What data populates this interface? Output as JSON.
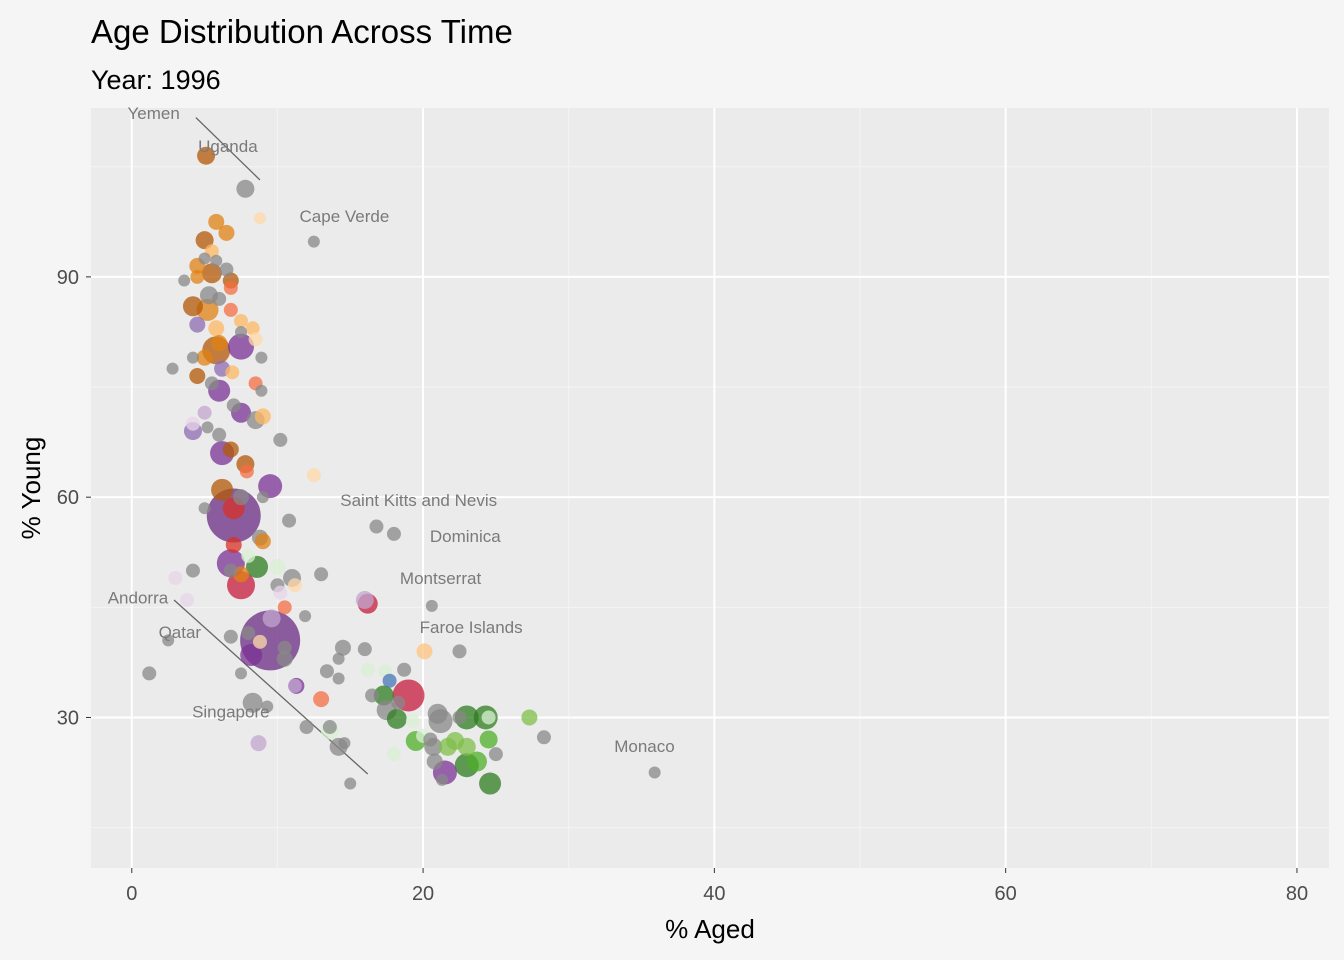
{
  "chart_data": {
    "type": "scatter",
    "title": "Age Distribution Across Time",
    "subtitle": "Year: 1996",
    "xlabel": "% Aged",
    "ylabel": "% Young",
    "xlim": [
      -2.8,
      82.2
    ],
    "ylim": [
      9.5,
      113
    ],
    "x_ticks": [
      0,
      20,
      40,
      60,
      80
    ],
    "y_ticks": [
      30,
      60,
      90
    ],
    "grid": true,
    "legend": "none",
    "colors": {
      "panel": "#ebebeb",
      "background": "#f5f5f5",
      "grid_major": "#ffffff",
      "grid_minor": "#f4f4f4",
      "label_text": "#7a7a7a"
    },
    "points": [
      {
        "x": 5.1,
        "y": 106.5,
        "r": 9,
        "c": "#b35806"
      },
      {
        "x": 7.8,
        "y": 102,
        "r": 9,
        "c": "#888888"
      },
      {
        "x": 8.8,
        "y": 98,
        "r": 6,
        "c": "#fdd9a8"
      },
      {
        "x": 12.5,
        "y": 94.8,
        "r": 6,
        "c": "#888888"
      },
      {
        "x": 5.8,
        "y": 97.5,
        "r": 8,
        "c": "#e08214"
      },
      {
        "x": 6.5,
        "y": 96,
        "r": 8,
        "c": "#e08214"
      },
      {
        "x": 5.0,
        "y": 95,
        "r": 9,
        "c": "#b35806"
      },
      {
        "x": 5.5,
        "y": 93.5,
        "r": 7,
        "c": "#fdb863"
      },
      {
        "x": 5.0,
        "y": 92.5,
        "r": 6,
        "c": "#888888"
      },
      {
        "x": 5.8,
        "y": 92.2,
        "r": 6,
        "c": "#888888"
      },
      {
        "x": 4.5,
        "y": 91.5,
        "r": 8,
        "c": "#e08214"
      },
      {
        "x": 6.5,
        "y": 91,
        "r": 7,
        "c": "#888888"
      },
      {
        "x": 5.5,
        "y": 90.5,
        "r": 10,
        "c": "#b35806"
      },
      {
        "x": 4.5,
        "y": 90,
        "r": 7,
        "c": "#e08214"
      },
      {
        "x": 6.8,
        "y": 89.5,
        "r": 8,
        "c": "#b35806"
      },
      {
        "x": 3.6,
        "y": 89.5,
        "r": 6,
        "c": "#888888"
      },
      {
        "x": 6.8,
        "y": 88.5,
        "r": 7,
        "c": "#f46d43"
      },
      {
        "x": 5.3,
        "y": 87.5,
        "r": 9,
        "c": "#888888"
      },
      {
        "x": 6.0,
        "y": 87,
        "r": 7,
        "c": "#888888"
      },
      {
        "x": 4.2,
        "y": 86,
        "r": 10,
        "c": "#b35806"
      },
      {
        "x": 5.2,
        "y": 85.5,
        "r": 11,
        "c": "#e08214"
      },
      {
        "x": 6.8,
        "y": 85.5,
        "r": 7,
        "c": "#f46d43"
      },
      {
        "x": 7.5,
        "y": 84,
        "r": 7,
        "c": "#fdb863"
      },
      {
        "x": 4.5,
        "y": 83.5,
        "r": 8,
        "c": "#8c6bb1"
      },
      {
        "x": 5.8,
        "y": 83,
        "r": 8,
        "c": "#fdb863"
      },
      {
        "x": 8.3,
        "y": 83,
        "r": 7,
        "c": "#fdb863"
      },
      {
        "x": 7.5,
        "y": 82.5,
        "r": 6,
        "c": "#888888"
      },
      {
        "x": 8.5,
        "y": 81.5,
        "r": 7,
        "c": "#fdd9a8"
      },
      {
        "x": 6.0,
        "y": 81,
        "r": 8,
        "c": "#e08214"
      },
      {
        "x": 7.5,
        "y": 80.5,
        "r": 13,
        "c": "#7b3294"
      },
      {
        "x": 5.8,
        "y": 80,
        "r": 14,
        "c": "#b35806"
      },
      {
        "x": 4.2,
        "y": 79,
        "r": 6,
        "c": "#888888"
      },
      {
        "x": 5.0,
        "y": 79,
        "r": 8,
        "c": "#e08214"
      },
      {
        "x": 8.9,
        "y": 79,
        "r": 6,
        "c": "#888888"
      },
      {
        "x": 6.2,
        "y": 77.5,
        "r": 8,
        "c": "#8c6bb1"
      },
      {
        "x": 2.8,
        "y": 77.5,
        "r": 6,
        "c": "#888888"
      },
      {
        "x": 6.9,
        "y": 77,
        "r": 7,
        "c": "#fdb863"
      },
      {
        "x": 4.5,
        "y": 76.5,
        "r": 8,
        "c": "#b35806"
      },
      {
        "x": 8.5,
        "y": 75.5,
        "r": 7,
        "c": "#f46d43"
      },
      {
        "x": 5.5,
        "y": 75.5,
        "r": 7,
        "c": "#888888"
      },
      {
        "x": 6.0,
        "y": 74.5,
        "r": 11,
        "c": "#7b3294"
      },
      {
        "x": 8.9,
        "y": 74.5,
        "r": 6,
        "c": "#888888"
      },
      {
        "x": 7.0,
        "y": 72.5,
        "r": 7,
        "c": "#888888"
      },
      {
        "x": 5.0,
        "y": 71.5,
        "r": 7,
        "c": "#c2a5cf"
      },
      {
        "x": 7.5,
        "y": 71.5,
        "r": 10,
        "c": "#7b3294"
      },
      {
        "x": 9.0,
        "y": 71,
        "r": 8,
        "c": "#fdb863"
      },
      {
        "x": 8.5,
        "y": 70.5,
        "r": 9,
        "c": "#888888"
      },
      {
        "x": 4.2,
        "y": 70,
        "r": 7,
        "c": "#e7d4e8"
      },
      {
        "x": 5.2,
        "y": 69.5,
        "r": 6,
        "c": "#888888"
      },
      {
        "x": 4.2,
        "y": 69,
        "r": 9,
        "c": "#8c6bb1"
      },
      {
        "x": 6.0,
        "y": 68.5,
        "r": 7,
        "c": "#888888"
      },
      {
        "x": 10.2,
        "y": 67.8,
        "r": 7,
        "c": "#888888"
      },
      {
        "x": 6.8,
        "y": 66.5,
        "r": 8,
        "c": "#b35806"
      },
      {
        "x": 6.2,
        "y": 66,
        "r": 12,
        "c": "#7b3294"
      },
      {
        "x": 7.8,
        "y": 64.5,
        "r": 9,
        "c": "#b35806"
      },
      {
        "x": 7.9,
        "y": 63.5,
        "r": 7,
        "c": "#f46d43"
      },
      {
        "x": 12.5,
        "y": 63,
        "r": 7,
        "c": "#fdd9a8"
      },
      {
        "x": 6.2,
        "y": 61,
        "r": 11,
        "c": "#b35806"
      },
      {
        "x": 9.5,
        "y": 61.5,
        "r": 12,
        "c": "#7b3294"
      },
      {
        "x": 9.0,
        "y": 60,
        "r": 6,
        "c": "#888888"
      },
      {
        "x": 7.5,
        "y": 60,
        "r": 8,
        "c": "#888888"
      },
      {
        "x": 5.0,
        "y": 58.5,
        "r": 6,
        "c": "#888888"
      },
      {
        "x": 7.0,
        "y": 57.5,
        "r": 27,
        "c": "#6a2c84"
      },
      {
        "x": 7.0,
        "y": 58.5,
        "r": 11,
        "c": "#d73027"
      },
      {
        "x": 10.8,
        "y": 56.8,
        "r": 7,
        "c": "#888888"
      },
      {
        "x": 16.8,
        "y": 56,
        "r": 7,
        "c": "#888888"
      },
      {
        "x": 18.0,
        "y": 55,
        "r": 7,
        "c": "#888888"
      },
      {
        "x": 8.8,
        "y": 54.5,
        "r": 8,
        "c": "#888888"
      },
      {
        "x": 9.0,
        "y": 54,
        "r": 8,
        "c": "#e08214"
      },
      {
        "x": 7.0,
        "y": 53.5,
        "r": 8,
        "c": "#d73027"
      },
      {
        "x": 8.0,
        "y": 52,
        "r": 7,
        "c": "#d9f0d3"
      },
      {
        "x": 6.8,
        "y": 51,
        "r": 14,
        "c": "#7b3294"
      },
      {
        "x": 8.6,
        "y": 50.5,
        "r": 11,
        "c": "#2e7d1f"
      },
      {
        "x": 10.0,
        "y": 50.5,
        "r": 8,
        "c": "#d9f0d3"
      },
      {
        "x": 4.2,
        "y": 50,
        "r": 7,
        "c": "#888888"
      },
      {
        "x": 6.8,
        "y": 50,
        "r": 7,
        "c": "#888888"
      },
      {
        "x": 13.0,
        "y": 49.5,
        "r": 7,
        "c": "#888888"
      },
      {
        "x": 11.0,
        "y": 49,
        "r": 9,
        "c": "#888888"
      },
      {
        "x": 7.5,
        "y": 49.5,
        "r": 8,
        "c": "#e08214"
      },
      {
        "x": 3.0,
        "y": 49,
        "r": 7,
        "c": "#e7d4e8"
      },
      {
        "x": 7.5,
        "y": 48,
        "r": 14,
        "c": "#c51b3c"
      },
      {
        "x": 10.0,
        "y": 48,
        "r": 7,
        "c": "#888888"
      },
      {
        "x": 11.2,
        "y": 48,
        "r": 7,
        "c": "#fdd9a8"
      },
      {
        "x": 10.2,
        "y": 47,
        "r": 7,
        "c": "#e7d4e8"
      },
      {
        "x": 3.8,
        "y": 46,
        "r": 7,
        "c": "#e7d4e8"
      },
      {
        "x": 16.0,
        "y": 46,
        "r": 9,
        "c": "#c2a5cf"
      },
      {
        "x": 16.2,
        "y": 45.5,
        "r": 10,
        "c": "#c51b3c"
      },
      {
        "x": 20.6,
        "y": 45.2,
        "r": 6,
        "c": "#888888"
      },
      {
        "x": 10.5,
        "y": 45,
        "r": 7,
        "c": "#f46d43"
      },
      {
        "x": 11.9,
        "y": 43.8,
        "r": 6,
        "c": "#888888"
      },
      {
        "x": 9.6,
        "y": 43.5,
        "r": 9,
        "c": "#c2a5cf"
      },
      {
        "x": 9.5,
        "y": 40.5,
        "r": 30,
        "c": "#6a2c84"
      },
      {
        "x": 8.0,
        "y": 41.5,
        "r": 7,
        "c": "#888888"
      },
      {
        "x": 6.8,
        "y": 41,
        "r": 7,
        "c": "#888888"
      },
      {
        "x": 8.8,
        "y": 40.3,
        "r": 7,
        "c": "#fdd9a8"
      },
      {
        "x": 2.5,
        "y": 40.5,
        "r": 6,
        "c": "#888888"
      },
      {
        "x": 10.5,
        "y": 39.5,
        "r": 7,
        "c": "#888888"
      },
      {
        "x": 14.5,
        "y": 39.5,
        "r": 8,
        "c": "#888888"
      },
      {
        "x": 16.0,
        "y": 39.3,
        "r": 7,
        "c": "#888888"
      },
      {
        "x": 8.2,
        "y": 38.5,
        "r": 11,
        "c": "#7b3294"
      },
      {
        "x": 20.1,
        "y": 39,
        "r": 8,
        "c": "#fdc47f"
      },
      {
        "x": 22.5,
        "y": 39,
        "r": 7,
        "c": "#888888"
      },
      {
        "x": 14.2,
        "y": 38,
        "r": 6,
        "c": "#888888"
      },
      {
        "x": 10.5,
        "y": 38,
        "r": 8,
        "c": "#888888"
      },
      {
        "x": 16.2,
        "y": 36.5,
        "r": 7,
        "c": "#d9f0d3"
      },
      {
        "x": 18.7,
        "y": 36.5,
        "r": 7,
        "c": "#888888"
      },
      {
        "x": 17.4,
        "y": 36.3,
        "r": 7,
        "c": "#d9f0d3"
      },
      {
        "x": 13.4,
        "y": 36.3,
        "r": 7,
        "c": "#888888"
      },
      {
        "x": 1.2,
        "y": 36,
        "r": 7,
        "c": "#888888"
      },
      {
        "x": 7.5,
        "y": 36,
        "r": 6,
        "c": "#888888"
      },
      {
        "x": 14.2,
        "y": 35.3,
        "r": 6,
        "c": "#888888"
      },
      {
        "x": 17.7,
        "y": 35,
        "r": 7,
        "c": "#4575b4"
      },
      {
        "x": 11.3,
        "y": 34.3,
        "r": 8,
        "c": "#7b3294"
      },
      {
        "x": 11.2,
        "y": 34.3,
        "r": 7,
        "c": "#c2a5cf"
      },
      {
        "x": 16.5,
        "y": 33,
        "r": 7,
        "c": "#888888"
      },
      {
        "x": 17.3,
        "y": 33,
        "r": 10,
        "c": "#2e7d1f"
      },
      {
        "x": 19.0,
        "y": 33,
        "r": 16,
        "c": "#c51b3c"
      },
      {
        "x": 13.0,
        "y": 32.5,
        "r": 8,
        "c": "#f46d43"
      },
      {
        "x": 8.3,
        "y": 32,
        "r": 10,
        "c": "#888888"
      },
      {
        "x": 9.3,
        "y": 31.5,
        "r": 6,
        "c": "#888888"
      },
      {
        "x": 18.3,
        "y": 32,
        "r": 7,
        "c": "#888888"
      },
      {
        "x": 21.0,
        "y": 30.5,
        "r": 10,
        "c": "#888888"
      },
      {
        "x": 17.5,
        "y": 31,
        "r": 10,
        "c": "#888888"
      },
      {
        "x": 18.2,
        "y": 29.8,
        "r": 10,
        "c": "#2e7d1f"
      },
      {
        "x": 19.3,
        "y": 29.5,
        "r": 7,
        "c": "#d9f0d3"
      },
      {
        "x": 21.2,
        "y": 29.5,
        "r": 12,
        "c": "#888888"
      },
      {
        "x": 22.5,
        "y": 30,
        "r": 7,
        "c": "#888888"
      },
      {
        "x": 23.0,
        "y": 30,
        "r": 12,
        "c": "#2e7d1f"
      },
      {
        "x": 24.3,
        "y": 30,
        "r": 12,
        "c": "#2e7d1f"
      },
      {
        "x": 24.5,
        "y": 30,
        "r": 7,
        "c": "#d9f0d3"
      },
      {
        "x": 27.3,
        "y": 30,
        "r": 8,
        "c": "#7fbf4a"
      },
      {
        "x": 13.6,
        "y": 28.7,
        "r": 7,
        "c": "#888888"
      },
      {
        "x": 12.0,
        "y": 28.7,
        "r": 7,
        "c": "#888888"
      },
      {
        "x": 13.6,
        "y": 28.2,
        "r": 9,
        "c": "#d9f0d3"
      },
      {
        "x": 20.0,
        "y": 27.5,
        "r": 7,
        "c": "#d9f0d3"
      },
      {
        "x": 20.5,
        "y": 27,
        "r": 7,
        "c": "#888888"
      },
      {
        "x": 19.5,
        "y": 26.8,
        "r": 10,
        "c": "#4daf2a"
      },
      {
        "x": 22.2,
        "y": 26.8,
        "r": 9,
        "c": "#7fbf4a"
      },
      {
        "x": 24.5,
        "y": 27,
        "r": 9,
        "c": "#4daf2a"
      },
      {
        "x": 28.3,
        "y": 27.3,
        "r": 7,
        "c": "#888888"
      },
      {
        "x": 14.6,
        "y": 26.5,
        "r": 6,
        "c": "#888888"
      },
      {
        "x": 14.2,
        "y": 26,
        "r": 9,
        "c": "#888888"
      },
      {
        "x": 8.7,
        "y": 26.5,
        "r": 8,
        "c": "#c2a5cf"
      },
      {
        "x": 20.7,
        "y": 26,
        "r": 9,
        "c": "#888888"
      },
      {
        "x": 21.7,
        "y": 26,
        "r": 9,
        "c": "#7fbf4a"
      },
      {
        "x": 23.0,
        "y": 26,
        "r": 9,
        "c": "#7fbf4a"
      },
      {
        "x": 18.0,
        "y": 25,
        "r": 7,
        "c": "#d9f0d3"
      },
      {
        "x": 25.0,
        "y": 25,
        "r": 7,
        "c": "#888888"
      },
      {
        "x": 20.8,
        "y": 24,
        "r": 8,
        "c": "#888888"
      },
      {
        "x": 23.7,
        "y": 24,
        "r": 10,
        "c": "#4daf2a"
      },
      {
        "x": 23.0,
        "y": 23.5,
        "r": 12,
        "c": "#2e7d1f"
      },
      {
        "x": 21.5,
        "y": 22.5,
        "r": 12,
        "c": "#7b3294"
      },
      {
        "x": 21.3,
        "y": 21.5,
        "r": 6,
        "c": "#888888"
      },
      {
        "x": 24.6,
        "y": 21,
        "r": 11,
        "c": "#2e7d1f"
      },
      {
        "x": 35.9,
        "y": 22.5,
        "r": 6,
        "c": "#888888"
      },
      {
        "x": 15.0,
        "y": 21,
        "r": 6,
        "c": "#888888"
      }
    ],
    "annotations": [
      {
        "text": "Yemen",
        "x": 3.3,
        "y": 111.5,
        "anchor": "end"
      },
      {
        "text": "Uganda",
        "x": 6.6,
        "y": 107,
        "anchor": "middle"
      },
      {
        "text": "Cape Verde",
        "x": 14.6,
        "y": 97.5,
        "anchor": "middle"
      },
      {
        "text": "Saint Kitts and Nevis",
        "x": 19.7,
        "y": 58.8,
        "anchor": "middle"
      },
      {
        "text": "Dominica",
        "x": 22.9,
        "y": 53.9,
        "anchor": "middle"
      },
      {
        "text": "Montserrat",
        "x": 21.2,
        "y": 48.2,
        "anchor": "middle"
      },
      {
        "text": "Andorra",
        "x": 2.5,
        "y": 45.5,
        "anchor": "end"
      },
      {
        "text": "Qatar",
        "x": 3.3,
        "y": 40.8,
        "anchor": "middle"
      },
      {
        "text": "Faroe Islands",
        "x": 23.3,
        "y": 41.5,
        "anchor": "middle"
      },
      {
        "text": "Singapore",
        "x": 6.8,
        "y": 30,
        "anchor": "middle"
      },
      {
        "text": "Monaco",
        "x": 35.2,
        "y": 25.3,
        "anchor": "middle"
      }
    ],
    "leader_lines": [
      {
        "x1": 4.4,
        "y1": 111.7,
        "x2": 8.8,
        "y2": 103.2
      },
      {
        "x1": 2.9,
        "y1": 46.0,
        "x2": 16.2,
        "y2": 22.3
      }
    ]
  }
}
